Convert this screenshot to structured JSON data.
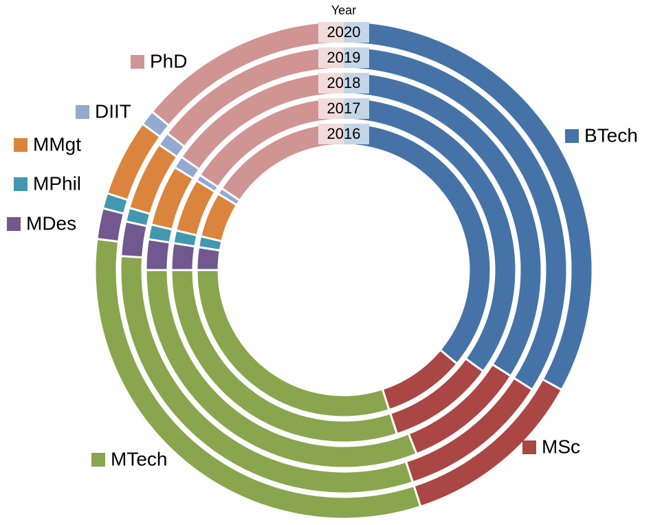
{
  "chart_data": {
    "type": "multi_donut",
    "series_title": "Year",
    "categories": [
      "BTech",
      "MSc",
      "MTech",
      "MDes",
      "MPhil",
      "MMgt",
      "DIIT",
      "PhD"
    ],
    "colors": [
      "#4573a7",
      "#aa4643",
      "#89a54e",
      "#71588f",
      "#4198af",
      "#db843d",
      "#93a9cf",
      "#d09493"
    ],
    "series": [
      {
        "name": "2020",
        "values": [
          33,
          12,
          32,
          2,
          1,
          5,
          1,
          14
        ]
      },
      {
        "name": "2019",
        "values": [
          34,
          11,
          31,
          2.5,
          1,
          5,
          1,
          14.5
        ]
      },
      {
        "name": "2018",
        "values": [
          34,
          10,
          31,
          2.5,
          1.2,
          5,
          1,
          15.3
        ]
      },
      {
        "name": "2017",
        "values": [
          35,
          10,
          30,
          2.5,
          1.2,
          5,
          0.6,
          15.7
        ]
      },
      {
        "name": "2016",
        "values": [
          36,
          9,
          30,
          2.5,
          1.2,
          5,
          0.7,
          15.6
        ]
      }
    ]
  }
}
